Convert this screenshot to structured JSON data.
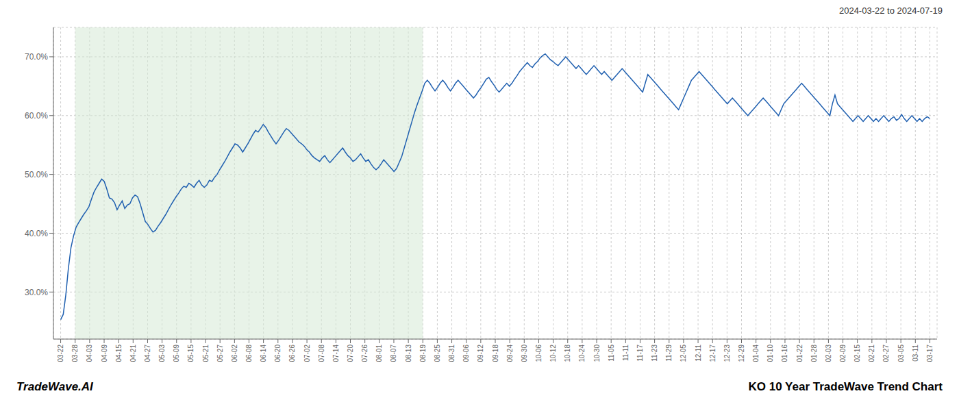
{
  "chart_data": {
    "type": "line",
    "title": "KO 10 Year TradeWave Trend Chart",
    "subtitle": "2024-03-22 to 2024-07-19",
    "annotations": [
      "TradeWave.AI"
    ],
    "color": "#2060b0",
    "grid": true,
    "shaded": {
      "x": [
        1,
        25
      ],
      "color": "#d6ead6"
    },
    "xlim": [
      -0.5,
      60.5
    ],
    "xticks": [
      {
        "value": 0,
        "label": "03-22"
      },
      {
        "value": 1,
        "label": "03-28"
      },
      {
        "value": 2,
        "label": "04-03"
      },
      {
        "value": 3,
        "label": "04-09"
      },
      {
        "value": 4,
        "label": "04-15"
      },
      {
        "value": 5,
        "label": "04-21"
      },
      {
        "value": 6,
        "label": "04-27"
      },
      {
        "value": 7,
        "label": "05-03"
      },
      {
        "value": 8,
        "label": "05-09"
      },
      {
        "value": 9,
        "label": "05-15"
      },
      {
        "value": 10,
        "label": "05-21"
      },
      {
        "value": 11,
        "label": "05-27"
      },
      {
        "value": 12,
        "label": "06-02"
      },
      {
        "value": 13,
        "label": "06-08"
      },
      {
        "value": 14,
        "label": "06-14"
      },
      {
        "value": 15,
        "label": "06-20"
      },
      {
        "value": 16,
        "label": "06-26"
      },
      {
        "value": 17,
        "label": "07-02"
      },
      {
        "value": 18,
        "label": "07-08"
      },
      {
        "value": 19,
        "label": "07-14"
      },
      {
        "value": 20,
        "label": "07-20"
      },
      {
        "value": 21,
        "label": "07-26"
      },
      {
        "value": 22,
        "label": "08-01"
      },
      {
        "value": 23,
        "label": "08-07"
      },
      {
        "value": 24,
        "label": "08-13"
      },
      {
        "value": 25,
        "label": "08-19"
      },
      {
        "value": 26,
        "label": "08-25"
      },
      {
        "value": 27,
        "label": "08-31"
      },
      {
        "value": 28,
        "label": "09-06"
      },
      {
        "value": 29,
        "label": "09-12"
      },
      {
        "value": 30,
        "label": "09-18"
      },
      {
        "value": 31,
        "label": "09-24"
      },
      {
        "value": 32,
        "label": "09-30"
      },
      {
        "value": 33,
        "label": "10-06"
      },
      {
        "value": 34,
        "label": "10-12"
      },
      {
        "value": 35,
        "label": "10-18"
      },
      {
        "value": 36,
        "label": "10-24"
      },
      {
        "value": 37,
        "label": "10-30"
      },
      {
        "value": 38,
        "label": "11-05"
      },
      {
        "value": 39,
        "label": "11-11"
      },
      {
        "value": 40,
        "label": "11-17"
      },
      {
        "value": 41,
        "label": "11-23"
      },
      {
        "value": 42,
        "label": "11-29"
      },
      {
        "value": 43,
        "label": "12-05"
      },
      {
        "value": 44,
        "label": "12-11"
      },
      {
        "value": 45,
        "label": "12-17"
      },
      {
        "value": 46,
        "label": "12-23"
      },
      {
        "value": 47,
        "label": "12-29"
      },
      {
        "value": 48,
        "label": "01-04"
      },
      {
        "value": 49,
        "label": "01-10"
      },
      {
        "value": 50,
        "label": "01-16"
      },
      {
        "value": 51,
        "label": "01-22"
      },
      {
        "value": 52,
        "label": "01-28"
      },
      {
        "value": 53,
        "label": "02-03"
      },
      {
        "value": 54,
        "label": "02-09"
      },
      {
        "value": 55,
        "label": "02-15"
      },
      {
        "value": 56,
        "label": "02-21"
      },
      {
        "value": 57,
        "label": "02-27"
      },
      {
        "value": 58,
        "label": "03-05"
      },
      {
        "value": 59,
        "label": "03-11"
      },
      {
        "value": 60,
        "label": "03-17"
      }
    ],
    "ylim": [
      22,
      75
    ],
    "yticks": [
      {
        "value": 30,
        "label": "30.0%"
      },
      {
        "value": 40,
        "label": "40.0%"
      },
      {
        "value": 50,
        "label": "50.0%"
      },
      {
        "value": 60,
        "label": "60.0%"
      },
      {
        "value": 70,
        "label": "70.0%"
      }
    ],
    "x": [
      0,
      0.177,
      0.354,
      0.531,
      0.708,
      0.885,
      1.0619,
      1.2389,
      1.4159,
      1.5929,
      1.7699,
      1.9469,
      2.1239,
      2.3009,
      2.4779,
      2.6549,
      2.8319,
      3.0088,
      3.1858,
      3.3628,
      3.5398,
      3.7168,
      3.8938,
      4.0708,
      4.2478,
      4.4248,
      4.6018,
      4.7788,
      4.9558,
      5.1327,
      5.3097,
      5.4867,
      5.6637,
      5.8407,
      6.0177,
      6.1947,
      6.3717,
      6.5487,
      6.7257,
      6.9027,
      7.0796,
      7.2566,
      7.4336,
      7.6106,
      7.7876,
      7.9646,
      8.1416,
      8.3186,
      8.4956,
      8.6726,
      8.8496,
      9.0265,
      9.2035,
      9.3805,
      9.5575,
      9.7345,
      9.9115,
      10.0885,
      10.2655,
      10.4425,
      10.6195,
      10.7965,
      10.9735,
      11.1504,
      11.3274,
      11.5044,
      11.6814,
      11.8584,
      12.0354,
      12.2124,
      12.3894,
      12.5664,
      12.7434,
      12.9204,
      13.0973,
      13.2743,
      13.4513,
      13.6283,
      13.8053,
      13.9823,
      14.1593,
      14.3363,
      14.5133,
      14.6903,
      14.8673,
      15.0442,
      15.2212,
      15.3982,
      15.5752,
      15.7522,
      15.9292,
      16.1062,
      16.2832,
      16.4602,
      16.6372,
      16.8142,
      16.9912,
      17.1681,
      17.3451,
      17.5221,
      17.6991,
      17.8761,
      18.0531,
      18.2301,
      18.4071,
      18.5841,
      18.7611,
      18.9381,
      19.115,
      19.292,
      19.469,
      19.646,
      19.823,
      20,
      20.177,
      20.354,
      20.531,
      20.708,
      20.885,
      21.0619,
      21.2389,
      21.4159,
      21.5929,
      21.7699,
      21.9469,
      22.1239,
      22.3009,
      22.4779,
      22.6549,
      22.8319,
      23.0088,
      23.1858,
      23.3628,
      23.5398,
      23.7168,
      23.8938,
      24.0708,
      24.2478,
      24.4248,
      24.6018,
      24.7788,
      24.9558,
      25.1327,
      25.3097,
      25.4867,
      25.6637,
      25.8407,
      26.0177,
      26.1947,
      26.3717,
      26.5487,
      26.7257,
      26.9027,
      27.0796,
      27.2566,
      27.4336,
      27.6106,
      27.7876,
      27.9646,
      28.1416,
      28.3186,
      28.4956,
      28.6726,
      28.8496,
      29.0265,
      29.2035,
      29.3805,
      29.5575,
      29.7345,
      29.9115,
      30.0885,
      30.2655,
      30.4425,
      30.6195,
      30.7965,
      30.9735,
      31.1504,
      31.3274,
      31.5044,
      31.6814,
      31.8584,
      32.0354,
      32.2124,
      32.3894,
      32.5664,
      32.7434,
      32.9204,
      33.0973,
      33.2743,
      33.4513,
      33.6283,
      33.8053,
      33.9823,
      34.1593,
      34.3363,
      34.5133,
      34.6903,
      34.8673,
      35.0442,
      35.2212,
      35.3982,
      35.5752,
      35.7522,
      35.9292,
      36.1062,
      36.2832,
      36.4602,
      36.6372,
      36.8142,
      36.9912,
      37.1681,
      37.3451,
      37.5221,
      37.6991,
      37.8761,
      38.0531,
      38.2301,
      38.4071,
      38.5841,
      38.7611,
      38.9381,
      39.115,
      39.292,
      39.469,
      39.646,
      39.823,
      40,
      40.177,
      40.354,
      40.531,
      40.708,
      40.885,
      41.0619,
      41.2389,
      41.4159,
      41.5929,
      41.7699,
      41.9469,
      42.1239,
      42.3009,
      42.4779,
      42.6549,
      42.8319,
      43.0088,
      43.1858,
      43.3628,
      43.5398,
      43.7168,
      43.8938,
      44.0708,
      44.2478,
      44.4248,
      44.6018,
      44.7788,
      44.9558,
      45.1327,
      45.3097,
      45.4867,
      45.6637,
      45.8407,
      46.0177,
      46.1947,
      46.3717,
      46.5487,
      46.7257,
      46.9027,
      47.0796,
      47.2566,
      47.4336,
      47.6106,
      47.7876,
      47.9646,
      48.1416,
      48.3186,
      48.4956,
      48.6726,
      48.8496,
      49.0265,
      49.2035,
      49.3805,
      49.5575,
      49.7345,
      49.9115,
      50.0885,
      50.2655,
      50.4425,
      50.6195,
      50.7965,
      50.9735,
      51.1504,
      51.3274,
      51.5044,
      51.6814,
      51.8584,
      52.0354,
      52.2124,
      52.3894,
      52.5664,
      52.7434,
      52.9204,
      53.0973,
      53.2743,
      53.4513,
      53.6283,
      53.8053,
      53.9823,
      54.1593,
      54.3363,
      54.5133,
      54.6903,
      54.8673,
      55.0442,
      55.2212,
      55.3982,
      55.5752,
      55.7522,
      55.9292,
      56.1062,
      56.2832,
      56.4602,
      56.6372,
      56.8142,
      56.9912,
      57.1681,
      57.3451,
      57.5221,
      57.6991,
      57.8761,
      58.0531,
      58.2301,
      58.4071,
      58.5841,
      58.7611,
      58.9381,
      59.115,
      59.292,
      59.469,
      59.646,
      59.823,
      60
    ],
    "values": [
      25.3,
      26.2,
      29.5,
      34.0,
      37.5,
      39.5,
      41.0,
      41.8,
      42.5,
      43.2,
      43.8,
      44.5,
      45.8,
      47.0,
      47.8,
      48.5,
      49.2,
      48.8,
      47.5,
      46.0,
      45.8,
      45.2,
      44.0,
      44.8,
      45.5,
      44.2,
      44.8,
      45.0,
      46.0,
      46.5,
      46.2,
      45.0,
      43.5,
      42.0,
      41.5,
      40.8,
      40.2,
      40.5,
      41.2,
      41.8,
      42.5,
      43.2,
      44.0,
      44.8,
      45.5,
      46.2,
      46.8,
      47.5,
      48.0,
      47.8,
      48.5,
      48.2,
      47.8,
      48.5,
      49.0,
      48.2,
      47.8,
      48.2,
      49.0,
      48.8,
      49.5,
      50.0,
      50.8,
      51.5,
      52.2,
      53.0,
      53.8,
      54.5,
      55.2,
      55.0,
      54.5,
      53.8,
      54.5,
      55.2,
      56.0,
      56.8,
      57.5,
      57.2,
      57.8,
      58.5,
      58.0,
      57.2,
      56.5,
      55.8,
      55.2,
      55.8,
      56.5,
      57.2,
      57.8,
      57.5,
      57.0,
      56.5,
      56.0,
      55.5,
      55.2,
      54.8,
      54.2,
      53.8,
      53.2,
      52.8,
      52.5,
      52.2,
      52.8,
      53.2,
      52.5,
      52.0,
      52.5,
      53.0,
      53.5,
      54.0,
      54.5,
      53.8,
      53.2,
      52.8,
      52.2,
      52.5,
      53.0,
      53.5,
      52.8,
      52.2,
      52.5,
      51.8,
      51.2,
      50.8,
      51.2,
      51.8,
      52.5,
      52.0,
      51.5,
      51.0,
      50.5,
      51.0,
      52.0,
      53.0,
      54.5,
      56.0,
      57.5,
      59.0,
      60.5,
      61.8,
      63.0,
      64.2,
      65.5,
      66.0,
      65.5,
      64.8,
      64.2,
      64.8,
      65.5,
      66.0,
      65.5,
      64.8,
      64.2,
      64.8,
      65.5,
      66.0,
      65.5,
      65.0,
      64.5,
      64.0,
      63.5,
      63.0,
      63.5,
      64.2,
      64.8,
      65.5,
      66.2,
      66.5,
      65.8,
      65.2,
      64.5,
      64.0,
      64.5,
      65.0,
      65.5,
      65.0,
      65.5,
      66.2,
      66.8,
      67.5,
      68.0,
      68.5,
      69.0,
      68.5,
      68.2,
      68.8,
      69.2,
      69.8,
      70.2,
      70.5,
      70.0,
      69.5,
      69.2,
      68.8,
      68.5,
      69.0,
      69.5,
      70.0,
      69.5,
      69.0,
      68.5,
      68.0,
      68.5,
      68.0,
      67.5,
      67.0,
      67.5,
      68.0,
      68.5,
      68.0,
      67.5,
      67.0,
      67.5,
      67.0,
      66.5,
      66.0,
      66.5,
      67.0,
      67.5,
      68.0,
      67.5,
      67.0,
      66.5,
      66.0,
      65.5,
      65.0,
      64.5,
      64.0,
      65.5,
      67.0,
      66.5,
      66.0,
      65.5,
      65.0,
      64.5,
      64.0,
      63.5,
      63.0,
      62.5,
      62.0,
      61.5,
      61.0,
      62.0,
      63.0,
      64.0,
      65.0,
      66.0,
      66.5,
      67.0,
      67.5,
      67.0,
      66.5,
      66.0,
      65.5,
      65.0,
      64.5,
      64.0,
      63.5,
      63.0,
      62.5,
      62.0,
      62.5,
      63.0,
      62.5,
      62.0,
      61.5,
      61.0,
      60.5,
      60.0,
      60.5,
      61.0,
      61.5,
      62.0,
      62.5,
      63.0,
      62.5,
      62.0,
      61.5,
      61.0,
      60.5,
      60.0,
      61.0,
      62.0,
      62.5,
      63.0,
      63.5,
      64.0,
      64.5,
      65.0,
      65.5,
      65.0,
      64.5,
      64.0,
      63.5,
      63.0,
      62.5,
      62.0,
      61.5,
      61.0,
      60.5,
      60.0,
      62.0,
      63.5,
      62.0,
      61.5,
      61.0,
      60.5,
      60.0,
      59.5,
      59.0,
      59.5,
      60.0,
      59.5,
      59.0,
      59.5,
      60.0,
      59.5,
      59.0,
      59.5,
      59.0,
      59.5,
      60.0,
      59.5,
      59.0,
      59.5,
      59.8,
      59.2,
      59.5,
      60.2,
      59.5,
      59.0,
      59.5,
      60.0,
      59.5,
      59.0,
      59.5,
      59.0,
      59.5,
      59.8,
      59.5
    ]
  }
}
